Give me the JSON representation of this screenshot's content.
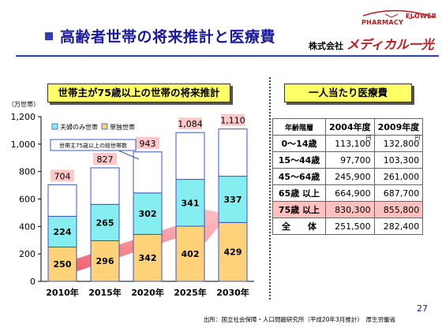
{
  "page": {
    "title": "高齢者世帯の将来推計と医療費",
    "company": {
      "prefix": "株式会社",
      "name": "メディカル一光"
    },
    "logo": {
      "line1": "PHARMACY",
      "line2": "FLOWER"
    },
    "page_number": "27",
    "source_note": "出所：国立社会保障・人口問題研究所（平成20年3月推計）　厚生労働省"
  },
  "left_section": {
    "title": "世帯主が75歳以上の世帯の将来推計"
  },
  "right_section": {
    "title": "一人当たり医療費"
  },
  "chart_data": {
    "type": "bar",
    "stacked": true,
    "title": "世帯主が75歳以上の世帯の将来推計",
    "ylabel": "（万世帯）",
    "categories": [
      "2010年",
      "2015年",
      "2020年",
      "2025年",
      "2030年"
    ],
    "series": [
      {
        "name": "単独世帯",
        "values": [
          250,
          296,
          342,
          402,
          429
        ],
        "color": "#ffd27a"
      },
      {
        "name": "夫婦のみ世帯",
        "values": [
          224,
          265,
          302,
          341,
          337
        ],
        "color": "#86eef0"
      },
      {
        "name": "",
        "values": [
          230,
          266,
          299,
          341,
          344
        ],
        "color": "#ffffff"
      }
    ],
    "totals": [
      704,
      827,
      943,
      1084,
      1110
    ],
    "totals_label": "世帯主75歳以上の総世帯数",
    "ylim": [
      0,
      1200
    ],
    "yticks": [
      "0",
      "200",
      "400",
      "600",
      "800",
      "1,000",
      "1,200"
    ],
    "total_labels": [
      "704",
      "827",
      "943",
      "1,084",
      "1,110"
    ],
    "legend": [
      {
        "name": "夫婦のみ世帯",
        "color": "#86eef0"
      },
      {
        "name": "単独世帯",
        "color": "#ffd27a"
      }
    ],
    "grid": false,
    "legend_position": "top-left"
  },
  "cost_table": {
    "headers": [
      "年齢階層",
      "2004年度",
      "2009年度"
    ],
    "unit": "円",
    "rows": [
      {
        "label": "0～14歳",
        "v2004": "113,100",
        "v2009": "132,800",
        "highlight": false
      },
      {
        "label": "15～44歳",
        "v2004": "97,700",
        "v2009": "103,300",
        "highlight": false
      },
      {
        "label": "45～64歳",
        "v2004": "245,900",
        "v2009": "261,000",
        "highlight": false
      },
      {
        "label": "65歳 以上",
        "v2004": "664,900",
        "v2009": "687,700",
        "highlight": false
      },
      {
        "label": "75歳 以上",
        "v2004": "830,300",
        "v2009": "855,800",
        "highlight": true
      },
      {
        "label": "全　　体",
        "v2004": "251,500",
        "v2009": "282,400",
        "highlight": false
      }
    ]
  }
}
